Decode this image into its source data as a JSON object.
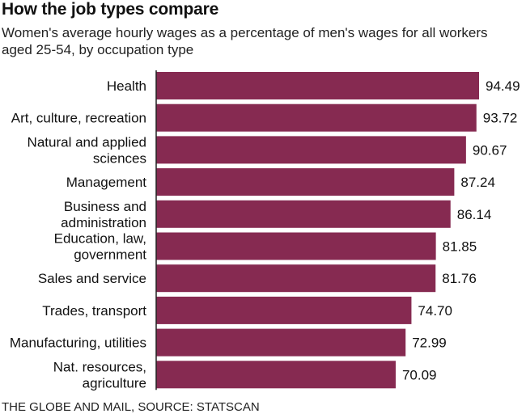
{
  "title": "How the job types compare",
  "subtitle": "Women's average hourly wages as a percentage of men's wages for all workers aged 25-54, by occupation type",
  "source": "THE GLOBE AND MAIL, SOURCE: STATSCAN",
  "chart_data": {
    "type": "bar",
    "orientation": "horizontal",
    "title": "How the job types compare",
    "subtitle": "Women's average hourly wages as a percentage of men's wages for all workers aged 25-54, by occupation type",
    "categories": [
      [
        "Health"
      ],
      [
        "Art, culture, recreation"
      ],
      [
        "Natural and applied",
        "sciences"
      ],
      [
        "Management"
      ],
      [
        "Business and",
        "administration"
      ],
      [
        "Education, law,",
        "government"
      ],
      [
        "Sales and service"
      ],
      [
        "Trades, transport"
      ],
      [
        "Manufacturing, utilities"
      ],
      [
        "Nat. resources,",
        "agriculture"
      ]
    ],
    "values": [
      94.49,
      93.72,
      90.67,
      87.24,
      86.14,
      81.85,
      81.76,
      74.7,
      72.99,
      70.09
    ],
    "value_labels": [
      "94.49",
      "93.72",
      "90.67",
      "87.24",
      "86.14",
      "81.85",
      "81.76",
      "74.70",
      "72.99",
      "70.09"
    ],
    "xlim": [
      0,
      94.49
    ],
    "bar_color": "#862a51",
    "axis_color": "#222222",
    "grid": false,
    "legend": "none"
  }
}
